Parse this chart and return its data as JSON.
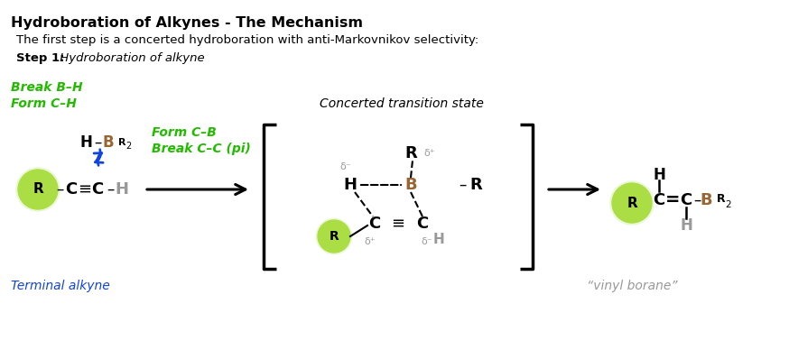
{
  "title": "Hydroboration of Alkynes - The Mechanism",
  "subtitle": "The first step is a concerted hydroboration with anti-Markovnikov selectivity:",
  "step_label": "Step 1:",
  "step_text": " Hydroboration of alkyne",
  "transition_state_label": "Concerted transition state",
  "break_bh": "Break B–H",
  "form_ch": "Form C–H",
  "form_cb": "Form C–B",
  "break_cc": "Break C–C (pi)",
  "terminal_alkyne": "Terminal alkyne",
  "vinyl_borane": "“vinyl borane”",
  "green": "#22bb00",
  "blue": "#1144dd",
  "boron_color": "#996633",
  "gray": "#999999",
  "light_green_center": "#aade44",
  "light_green_edge": "#ccee88",
  "black": "#000000",
  "white": "#ffffff"
}
